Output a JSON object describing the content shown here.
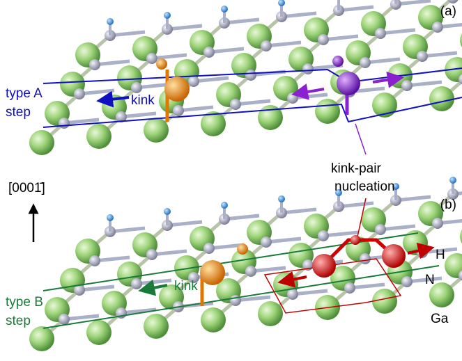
{
  "panel_a": {
    "label": "(a)",
    "step_label": [
      "type A",
      "step"
    ],
    "kink_label": "kink"
  },
  "annotation": {
    "kink_pair": [
      "kink-pair",
      "nucleation"
    ]
  },
  "axis_label": "[0001̄]",
  "panel_b": {
    "label": "(b)",
    "step_label": [
      "type B",
      "step"
    ],
    "kink_label": "kink",
    "legend": [
      "H",
      "N",
      "Ga"
    ]
  }
}
